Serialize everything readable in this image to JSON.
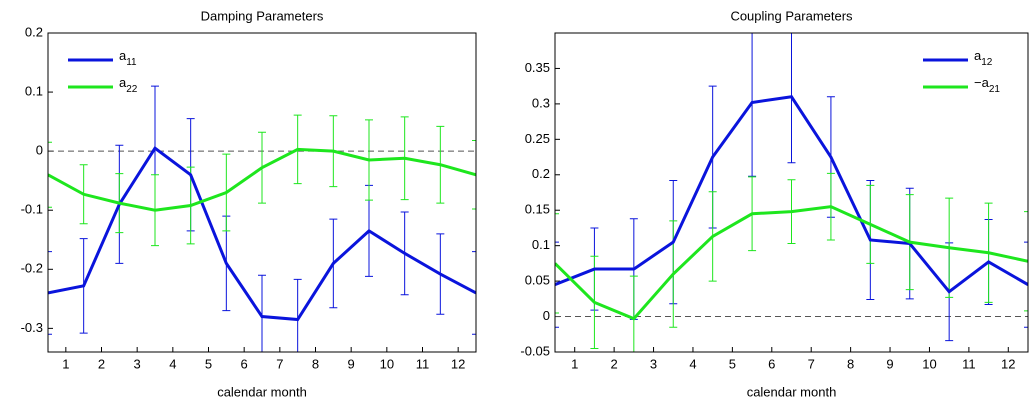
{
  "chart_data": [
    {
      "type": "line",
      "title": "Damping Parameters",
      "xlabel": "calendar month",
      "x": [
        0.5,
        1.5,
        2.5,
        3.5,
        4.5,
        5.5,
        6.5,
        7.5,
        8.5,
        9.5,
        10.5,
        11.5,
        12.5
      ],
      "series": [
        {
          "name": "a11",
          "color": "#0a14dc",
          "values": [
            -0.24,
            -0.228,
            -0.09,
            0.005,
            -0.04,
            -0.19,
            -0.28,
            -0.285,
            -0.19,
            -0.135,
            -0.173,
            -0.208,
            -0.24
          ],
          "errors": [
            0.07,
            0.08,
            0.1,
            0.105,
            0.095,
            0.08,
            0.07,
            0.068,
            0.075,
            0.077,
            0.07,
            0.068,
            0.07
          ]
        },
        {
          "name": "a22",
          "color": "#1ee61e",
          "values": [
            -0.04,
            -0.073,
            -0.088,
            -0.1,
            -0.092,
            -0.07,
            -0.028,
            0.003,
            0,
            -0.015,
            -0.012,
            -0.023,
            -0.04
          ],
          "errors": [
            0.055,
            0.05,
            0.05,
            0.06,
            0.065,
            0.065,
            0.06,
            0.058,
            0.06,
            0.068,
            0.07,
            0.065,
            0.058
          ]
        }
      ],
      "xlim": [
        0.5,
        12.5
      ],
      "xticks": [
        1,
        2,
        3,
        4,
        5,
        6,
        7,
        8,
        9,
        10,
        11,
        12
      ],
      "ylim": [
        -0.34,
        0.2
      ],
      "yticks": [
        0.2,
        0.1,
        0,
        -0.1,
        -0.2,
        -0.3
      ],
      "zero_line": true,
      "legend": "upper left"
    },
    {
      "type": "line",
      "title": "Coupling Parameters",
      "xlabel": "calendar month",
      "x": [
        0.5,
        1.5,
        2.5,
        3.5,
        4.5,
        5.5,
        6.5,
        7.5,
        8.5,
        9.5,
        10.5,
        11.5,
        12.5
      ],
      "series": [
        {
          "name": "a12",
          "color": "#0a14dc",
          "values": [
            0.045,
            0.067,
            0.067,
            0.105,
            0.225,
            0.302,
            0.31,
            0.225,
            0.108,
            0.103,
            0.035,
            0.077,
            0.045
          ],
          "errors": [
            0.06,
            0.058,
            0.071,
            0.087,
            0.1,
            0.104,
            0.093,
            0.085,
            0.084,
            0.078,
            0.069,
            0.06,
            0.06
          ]
        },
        {
          "name": "−a21",
          "color": "#1ee61e",
          "values": [
            0.075,
            0.02,
            -0.003,
            0.06,
            0.113,
            0.145,
            0.148,
            0.155,
            0.13,
            0.105,
            0.097,
            0.09,
            0.078
          ],
          "errors": [
            0.07,
            0.065,
            0.06,
            0.075,
            0.063,
            0.052,
            0.045,
            0.047,
            0.055,
            0.067,
            0.07,
            0.07,
            0.07
          ]
        }
      ],
      "xlim": [
        0.5,
        12.5
      ],
      "xticks": [
        1,
        2,
        3,
        4,
        5,
        6,
        7,
        8,
        9,
        10,
        11,
        12
      ],
      "ylim": [
        -0.05,
        0.4
      ],
      "yticks": [
        -0.05,
        0,
        0.05,
        0.1,
        0.15,
        0.2,
        0.25,
        0.3,
        0.35
      ],
      "zero_line": true,
      "legend": "upper right"
    }
  ]
}
